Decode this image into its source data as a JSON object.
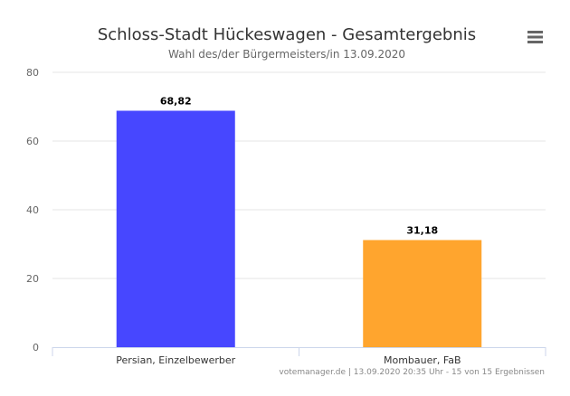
{
  "chart_data": {
    "type": "bar",
    "title": "Schloss-Stadt Hückeswagen - Gesamtergebnis",
    "subtitle": "Wahl des/der Bürgermeisters/in 13.09.2020",
    "categories": [
      "Persian, Einzelbewerber",
      "Mombauer, FaB"
    ],
    "values": [
      68.82,
      31.18
    ],
    "data_labels": [
      "68,82",
      "31,18"
    ],
    "colors": [
      "#4747FF",
      "#FFA52E"
    ],
    "ylim": [
      0,
      80
    ],
    "yticks": [
      {
        "value": 0,
        "label": "0"
      },
      {
        "value": 20,
        "label": "20"
      },
      {
        "value": 40,
        "label": "40"
      },
      {
        "value": 60,
        "label": "60"
      },
      {
        "value": 80,
        "label": "80"
      }
    ],
    "grid": true,
    "legend": "none",
    "credits": "votemanager.de | 13.09.2020 20:35 Uhr - 15 von 15 Ergebnissen"
  },
  "menu_icon": "hamburger-menu-icon"
}
